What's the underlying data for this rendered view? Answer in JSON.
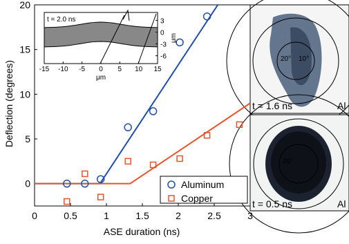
{
  "chart_data": {
    "type": "scatter",
    "xlabel": "ASE duration (ns)",
    "ylabel": "Deflection (degrees)",
    "xlim": [
      0,
      3
    ],
    "ylim": [
      -2.5,
      20
    ],
    "xticks": [
      0,
      0.5,
      1,
      1.5,
      2,
      2.5,
      3
    ],
    "yticks": [
      0,
      5,
      10,
      15,
      20
    ],
    "legend": "lower right",
    "series": [
      {
        "name": "Aluminum",
        "color": "#1f4ea8",
        "marker": "circle",
        "x": [
          0.45,
          0.7,
          0.92,
          1.3,
          1.65,
          2.02,
          2.4
        ],
        "values": [
          0,
          0,
          0.5,
          6.3,
          8.1,
          15.8,
          18.7
        ]
      },
      {
        "name": "Copper",
        "color": "#e8532a",
        "marker": "square",
        "x": [
          0.45,
          0.7,
          0.92,
          1.3,
          1.65,
          2.02,
          2.4,
          2.85
        ],
        "values": [
          -2,
          1.1,
          -1.5,
          2.5,
          2.1,
          2.8,
          5.4,
          6.6
        ]
      }
    ],
    "fits": [
      {
        "color": "#1f4ea8",
        "x": [
          0,
          0.91,
          2.55
        ],
        "values": [
          0,
          0,
          20
        ]
      },
      {
        "color": "#e8532a",
        "x": [
          0,
          1.33,
          3
        ],
        "values": [
          0,
          0,
          9
        ]
      }
    ],
    "inset": {
      "title": "t = 2.0 ns",
      "xlabel": "μm",
      "ylabel": "μm",
      "xlim": [
        -15,
        15
      ],
      "ylim": [
        -8,
        5
      ],
      "xticks": [
        -15,
        -10,
        -5,
        0,
        5,
        10,
        15
      ],
      "yticks": [
        3,
        0,
        -3,
        -6
      ]
    },
    "images": [
      {
        "time_label": "t = 1.6 ns",
        "material": "Al",
        "angle_labels": [
          "20°",
          "10°"
        ]
      },
      {
        "time_label": "t = 0.5 ns",
        "material": "Al",
        "angle_labels": [
          "20°"
        ]
      }
    ]
  }
}
